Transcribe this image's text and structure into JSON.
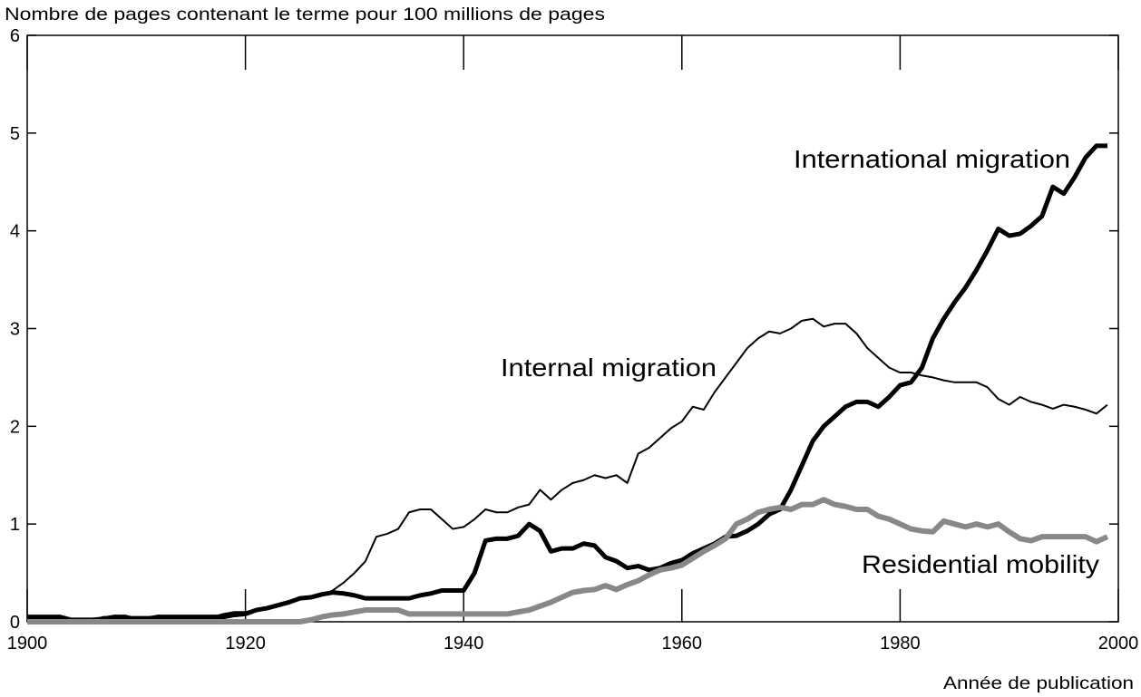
{
  "chart_data": {
    "type": "line",
    "y_label": "Nombre de pages contenant le terme pour 100 millions de pages",
    "x_label": "Année de publication",
    "x": [
      1900,
      1901,
      1902,
      1903,
      1904,
      1905,
      1906,
      1907,
      1908,
      1909,
      1910,
      1911,
      1912,
      1913,
      1914,
      1915,
      1916,
      1917,
      1918,
      1919,
      1920,
      1921,
      1922,
      1923,
      1924,
      1925,
      1926,
      1927,
      1928,
      1929,
      1930,
      1931,
      1932,
      1933,
      1934,
      1935,
      1936,
      1937,
      1938,
      1939,
      1940,
      1941,
      1942,
      1943,
      1944,
      1945,
      1946,
      1947,
      1948,
      1949,
      1950,
      1951,
      1952,
      1953,
      1954,
      1955,
      1956,
      1957,
      1958,
      1959,
      1960,
      1961,
      1962,
      1963,
      1964,
      1965,
      1966,
      1967,
      1968,
      1969,
      1970,
      1971,
      1972,
      1973,
      1974,
      1975,
      1976,
      1977,
      1978,
      1979,
      1980,
      1981,
      1982,
      1983,
      1984,
      1985,
      1986,
      1987,
      1988,
      1989,
      1990,
      1991,
      1992,
      1993,
      1994,
      1995,
      1996,
      1997,
      1998,
      1999
    ],
    "series": [
      {
        "name": "International migration",
        "color": "#000000",
        "values": [
          0.05,
          0.05,
          0.05,
          0.05,
          0.02,
          0.02,
          0.02,
          0.03,
          0.05,
          0.05,
          0.02,
          0.03,
          0.05,
          0.05,
          0.05,
          0.05,
          0.05,
          0.05,
          0.05,
          0.07,
          0.08,
          0.12,
          0.14,
          0.17,
          0.2,
          0.24,
          0.25,
          0.28,
          0.3,
          0.29,
          0.27,
          0.24,
          0.24,
          0.24,
          0.24,
          0.24,
          0.27,
          0.29,
          0.32,
          0.32,
          0.32,
          0.5,
          0.83,
          0.85,
          0.85,
          0.88,
          1.0,
          0.93,
          0.72,
          0.75,
          0.75,
          0.8,
          0.78,
          0.66,
          0.62,
          0.55,
          0.57,
          0.53,
          0.55,
          0.6,
          0.63,
          0.7,
          0.75,
          0.8,
          0.87,
          0.88,
          0.93,
          1.0,
          1.1,
          1.15,
          1.35,
          1.6,
          1.85,
          2.0,
          2.1,
          2.2,
          2.25,
          2.25,
          2.2,
          2.3,
          2.42,
          2.45,
          2.6,
          2.9,
          3.1,
          3.27,
          3.42,
          3.6,
          3.8,
          4.02,
          3.95,
          3.97,
          4.05,
          4.15,
          4.45,
          4.38,
          4.55,
          4.75,
          4.87,
          4.87
        ]
      },
      {
        "name": "Internal migration",
        "color": "#000000",
        "values": [
          0.03,
          0.03,
          0.03,
          0.03,
          0.02,
          0.02,
          0.02,
          0.05,
          0.05,
          0.05,
          0.05,
          0.05,
          0.05,
          0.05,
          0.05,
          0.05,
          0.05,
          0.05,
          0.08,
          0.1,
          0.1,
          0.12,
          0.14,
          0.17,
          0.2,
          0.23,
          0.25,
          0.27,
          0.32,
          0.4,
          0.5,
          0.62,
          0.87,
          0.9,
          0.95,
          1.12,
          1.15,
          1.15,
          1.05,
          0.95,
          0.97,
          1.05,
          1.15,
          1.12,
          1.12,
          1.17,
          1.2,
          1.35,
          1.25,
          1.35,
          1.42,
          1.45,
          1.5,
          1.47,
          1.5,
          1.42,
          1.72,
          1.78,
          1.88,
          1.98,
          2.05,
          2.2,
          2.17,
          2.35,
          2.5,
          2.65,
          2.8,
          2.9,
          2.97,
          2.95,
          3.0,
          3.08,
          3.1,
          3.02,
          3.05,
          3.05,
          2.95,
          2.8,
          2.7,
          2.6,
          2.55,
          2.55,
          2.52,
          2.5,
          2.47,
          2.45,
          2.45,
          2.45,
          2.4,
          2.28,
          2.22,
          2.3,
          2.25,
          2.22,
          2.18,
          2.22,
          2.2,
          2.17,
          2.13,
          2.22
        ]
      },
      {
        "name": "Residential mobility",
        "color": "#888888",
        "values": [
          0,
          0,
          0,
          0,
          0,
          0,
          0,
          0,
          0,
          0,
          0,
          0,
          0,
          0,
          0,
          0,
          0,
          0,
          0,
          0,
          0,
          0,
          0,
          0,
          0,
          0,
          0.02,
          0.05,
          0.07,
          0.08,
          0.1,
          0.12,
          0.12,
          0.12,
          0.12,
          0.08,
          0.08,
          0.08,
          0.08,
          0.08,
          0.08,
          0.08,
          0.08,
          0.08,
          0.08,
          0.1,
          0.12,
          0.16,
          0.2,
          0.25,
          0.3,
          0.32,
          0.33,
          0.37,
          0.33,
          0.38,
          0.42,
          0.48,
          0.53,
          0.55,
          0.58,
          0.65,
          0.72,
          0.78,
          0.85,
          1.0,
          1.05,
          1.12,
          1.15,
          1.17,
          1.15,
          1.2,
          1.2,
          1.25,
          1.2,
          1.18,
          1.15,
          1.15,
          1.08,
          1.05,
          1.0,
          0.95,
          0.93,
          0.92,
          1.03,
          1.0,
          0.97,
          1.0,
          0.97,
          1.0,
          0.92,
          0.85,
          0.83,
          0.87,
          0.87,
          0.87,
          0.87,
          0.87,
          0.82,
          0.87
        ]
      }
    ],
    "xlim": [
      1900,
      2000
    ],
    "xticks": [
      1900,
      1920,
      1940,
      1960,
      1980,
      2000
    ],
    "ylim": [
      0,
      6
    ],
    "yticks": [
      0,
      1,
      2,
      3,
      4,
      5,
      6
    ]
  }
}
